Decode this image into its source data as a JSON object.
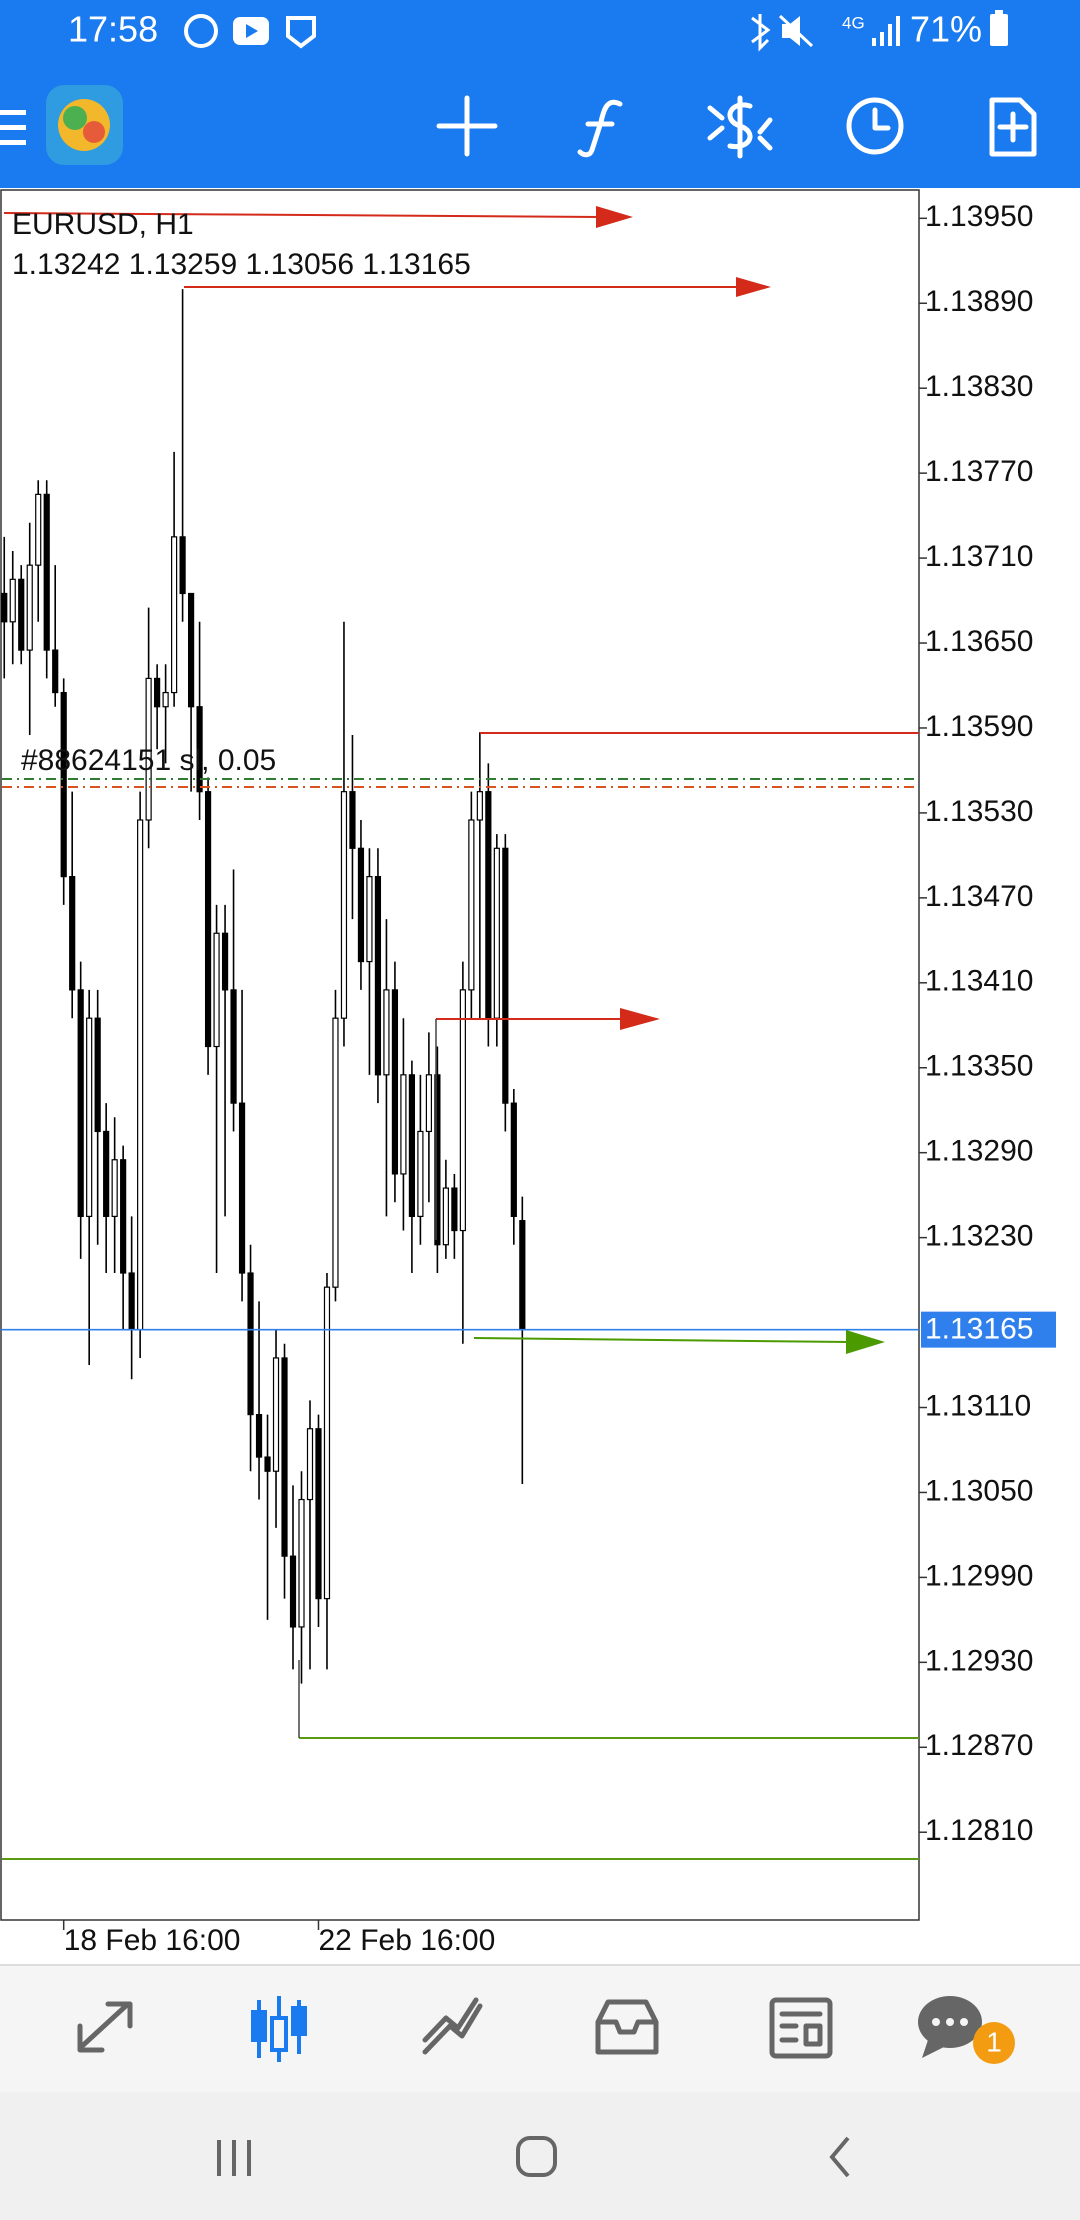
{
  "status_bar": {
    "time": "17:58",
    "network": "4G",
    "battery": "71%"
  },
  "chart_data": {
    "type": "candlestick",
    "title": "EURUSD, H1",
    "subtitle": "1.13242 1.13259 1.13056 1.13165",
    "order_label": "#88624151 sl, 0.05",
    "categories": [
      null,
      null,
      null,
      null,
      null,
      null,
      null,
      "18 Feb 16:00",
      null,
      null,
      null,
      null,
      null,
      null,
      null,
      null,
      null,
      null,
      null,
      null,
      null,
      null,
      null,
      null,
      null,
      null,
      null,
      null,
      null,
      null,
      null,
      null,
      null,
      null,
      null,
      null,
      null,
      "22 Feb 16:00",
      null,
      null,
      null,
      null,
      null,
      null,
      null,
      null,
      null,
      null,
      null,
      null,
      null,
      null,
      null,
      null,
      null,
      null,
      null,
      null,
      null,
      null,
      null,
      null
    ],
    "open": [
      1.13685,
      1.13665,
      1.13695,
      1.13645,
      1.13705,
      1.13755,
      1.13645,
      1.13615,
      1.13485,
      1.13405,
      1.13245,
      1.13385,
      1.13305,
      1.13245,
      1.13285,
      1.13205,
      1.13165,
      1.13525,
      1.13625,
      1.13605,
      1.13615,
      1.13725,
      1.13685,
      1.13605,
      1.13545,
      1.13365,
      1.13445,
      1.13405,
      1.13325,
      1.13205,
      1.13105,
      1.13075,
      1.13065,
      1.13145,
      1.13005,
      1.12955,
      1.13045,
      1.13095,
      1.12975,
      1.13195,
      1.13385,
      1.13545,
      1.13505,
      1.13425,
      1.13485,
      1.13345,
      1.13405,
      1.13275,
      1.13345,
      1.13245,
      1.13305,
      1.13345,
      1.13225,
      1.13265,
      1.13235,
      1.13405,
      1.13525,
      1.13545,
      1.13385,
      1.13505,
      1.13325,
      1.13242
    ],
    "high": [
      1.13725,
      1.13715,
      1.13705,
      1.13735,
      1.13765,
      1.13765,
      1.13705,
      1.13625,
      1.13545,
      1.13425,
      1.13405,
      1.13405,
      1.13325,
      1.13315,
      1.13295,
      1.13245,
      1.13545,
      1.13675,
      1.13635,
      1.13635,
      1.13785,
      1.139,
      1.13685,
      1.13665,
      1.13555,
      1.13465,
      1.13465,
      1.1349,
      1.13405,
      1.13225,
      1.13185,
      1.13105,
      1.13165,
      1.13155,
      1.13055,
      1.13065,
      1.13115,
      1.13105,
      1.13205,
      1.13405,
      1.13665,
      1.13585,
      1.13525,
      1.13505,
      1.13505,
      1.13455,
      1.13425,
      1.13385,
      1.13355,
      1.13345,
      1.13375,
      1.13365,
      1.13285,
      1.13275,
      1.13425,
      1.13545,
      1.13587,
      1.13565,
      1.13515,
      1.13515,
      1.13335,
      1.13259
    ],
    "low": [
      1.13625,
      1.13635,
      1.13635,
      1.13585,
      1.13665,
      1.13625,
      1.13605,
      1.13465,
      1.13385,
      1.13215,
      1.1314,
      1.13225,
      1.13205,
      1.13205,
      1.13165,
      1.1313,
      1.13145,
      1.13505,
      1.13575,
      1.13565,
      1.13605,
      1.13665,
      1.13545,
      1.13525,
      1.13345,
      1.13205,
      1.13245,
      1.13305,
      1.13185,
      1.13065,
      1.13045,
      1.1296,
      1.13025,
      1.12975,
      1.12925,
      1.12915,
      1.12925,
      1.12955,
      1.12925,
      1.13185,
      1.13365,
      1.13455,
      1.13405,
      1.13345,
      1.13325,
      1.13245,
      1.13255,
      1.13235,
      1.13205,
      1.13225,
      1.13255,
      1.13205,
      1.13215,
      1.13215,
      1.13155,
      1.13385,
      1.13385,
      1.13365,
      1.13365,
      1.13305,
      1.13225,
      1.13056
    ],
    "close": [
      1.13665,
      1.13695,
      1.13645,
      1.13705,
      1.13755,
      1.13645,
      1.13615,
      1.13485,
      1.13405,
      1.13245,
      1.13385,
      1.13305,
      1.13245,
      1.13285,
      1.13205,
      1.13165,
      1.13525,
      1.13625,
      1.13605,
      1.13615,
      1.13725,
      1.13685,
      1.13605,
      1.13545,
      1.13365,
      1.13445,
      1.13405,
      1.13325,
      1.13205,
      1.13105,
      1.13075,
      1.13065,
      1.13145,
      1.13005,
      1.12955,
      1.13045,
      1.13095,
      1.12975,
      1.13195,
      1.13385,
      1.13545,
      1.13505,
      1.13425,
      1.13485,
      1.13345,
      1.13405,
      1.13275,
      1.13345,
      1.13245,
      1.13305,
      1.13345,
      1.13225,
      1.13265,
      1.13235,
      1.13405,
      1.13525,
      1.13545,
      1.13385,
      1.13505,
      1.13325,
      1.13245,
      1.13165
    ],
    "up_color": "#ffffff",
    "down_color": "#000000",
    "wick_color": "#000000",
    "ylim": [
      1.12748,
      1.1397
    ],
    "yticks": [
      {
        "value": 1.1395,
        "label": "1.13950"
      },
      {
        "value": 1.1389,
        "label": "1.13890"
      },
      {
        "value": 1.1383,
        "label": "1.13830"
      },
      {
        "value": 1.1377,
        "label": "1.13770"
      },
      {
        "value": 1.1371,
        "label": "1.13710"
      },
      {
        "value": 1.1365,
        "label": "1.13650"
      },
      {
        "value": 1.1359,
        "label": "1.13590"
      },
      {
        "value": 1.1353,
        "label": "1.13530"
      },
      {
        "value": 1.1347,
        "label": "1.13470"
      },
      {
        "value": 1.1341,
        "label": "1.13410"
      },
      {
        "value": 1.1335,
        "label": "1.13350"
      },
      {
        "value": 1.1329,
        "label": "1.13290"
      },
      {
        "value": 1.1323,
        "label": "1.13230"
      },
      {
        "value": 1.1311,
        "label": "1.13110"
      },
      {
        "value": 1.1305,
        "label": "1.13050"
      },
      {
        "value": 1.1299,
        "label": "1.12990"
      },
      {
        "value": 1.1293,
        "label": "1.12930"
      },
      {
        "value": 1.1287,
        "label": "1.12870"
      },
      {
        "value": 1.1281,
        "label": "1.12810"
      }
    ],
    "current_price": {
      "value": 1.13165,
      "label": "1.13165",
      "color": "#2f80ed"
    }
  },
  "bottom_nav": {
    "chat_badge": "1"
  }
}
